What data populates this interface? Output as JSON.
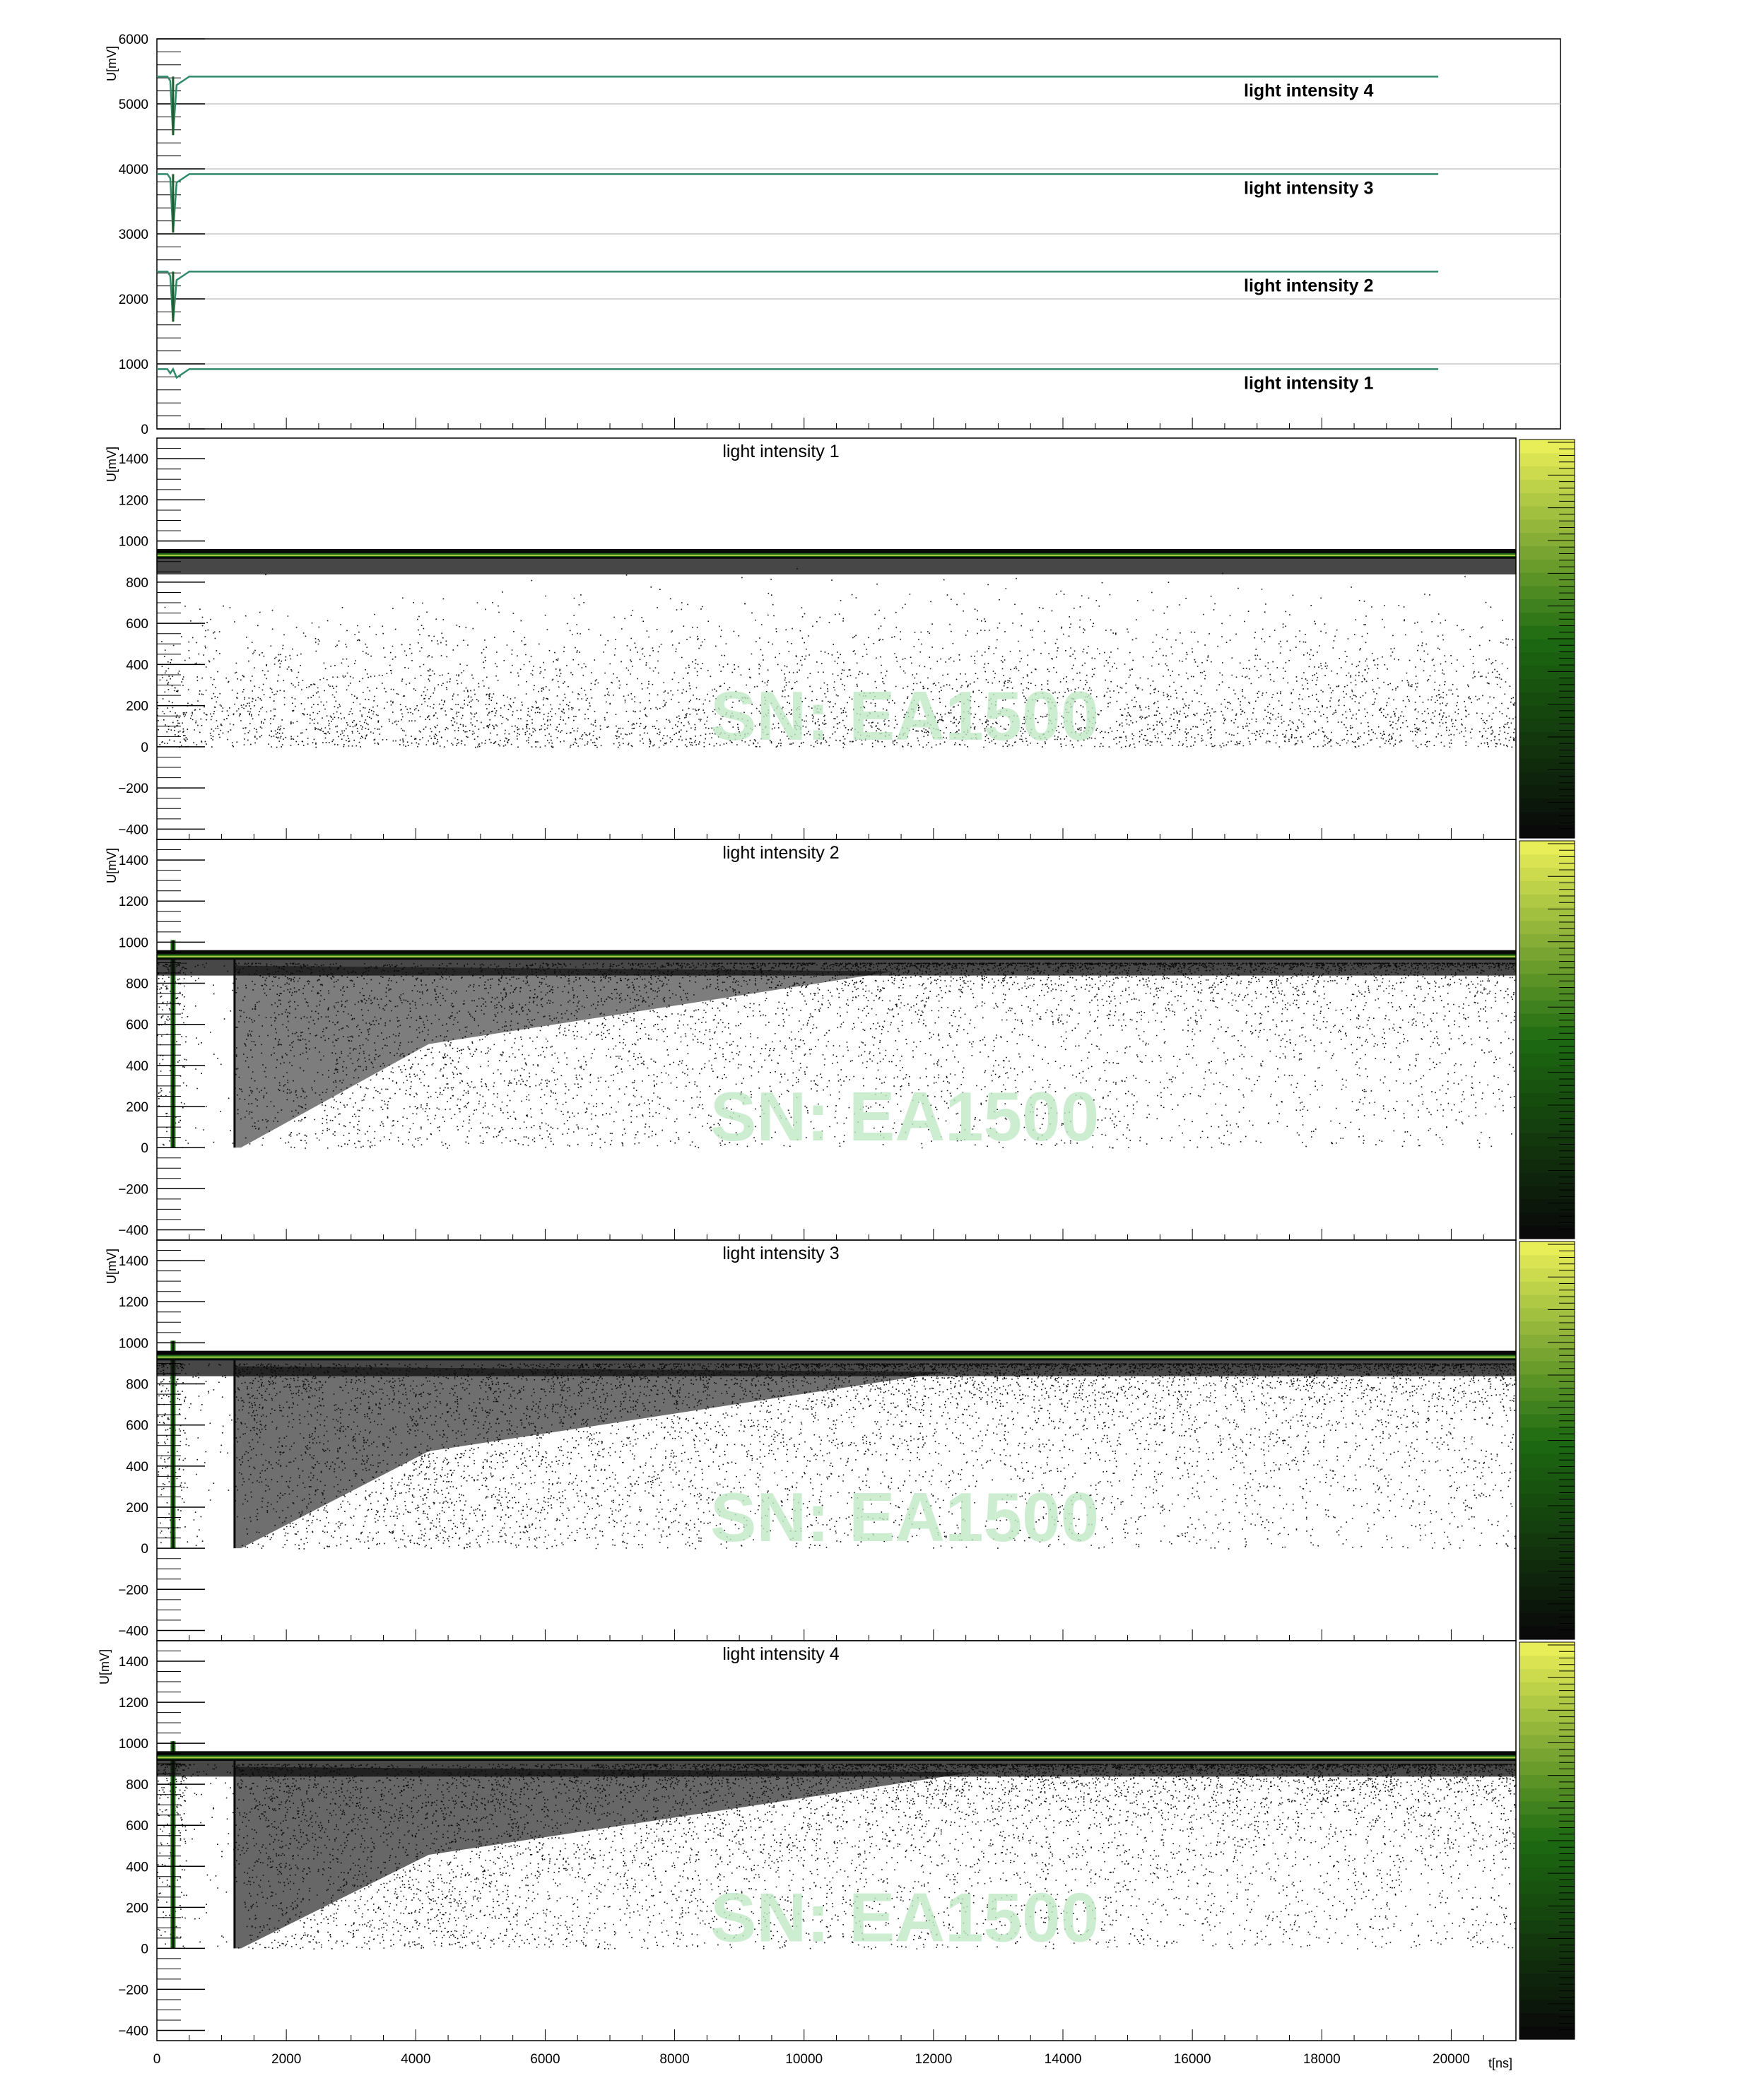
{
  "figure": {
    "watermark": "SN: EA1500",
    "colors": {
      "axis": "#000000",
      "grid": "#c8c8c8",
      "trace": "#2f8a6a",
      "trace_dark": "#1e5a2a",
      "density_low": "#0a0a0a",
      "density_mid": "#1d6b12",
      "density_high": "#e8ee58",
      "watermark": "#bfe9c4"
    }
  },
  "chart_data": [
    {
      "type": "line",
      "panel": "overview",
      "ylabel": "U[mV]",
      "ylim": [
        0,
        6000
      ],
      "xlim": [
        0,
        21000
      ],
      "yticks": [
        0,
        1000,
        2000,
        3000,
        4000,
        5000,
        6000
      ],
      "grid": true,
      "series": [
        {
          "name": "light intensity 1",
          "baseline": 920,
          "dip_min": 920,
          "x_end": 19800
        },
        {
          "name": "light intensity 2",
          "baseline": 2420,
          "dip_min": 1650,
          "x_end": 19800
        },
        {
          "name": "light intensity 3",
          "baseline": 3920,
          "dip_min": 3020,
          "x_end": 19800
        },
        {
          "name": "light intensity 4",
          "baseline": 5420,
          "dip_min": 4520,
          "x_end": 19800
        }
      ]
    },
    {
      "type": "heatmap",
      "title": "light intensity 1",
      "ylabel": "U[mV]",
      "xlim": [
        0,
        21000
      ],
      "ylim": [
        -450,
        1500
      ],
      "yticks": [
        -400,
        -200,
        0,
        200,
        400,
        600,
        800,
        1000,
        1200,
        1400
      ],
      "baseline": 920,
      "pulse": false,
      "density": 0.25
    },
    {
      "type": "heatmap",
      "title": "light intensity 2",
      "ylabel": "U[mV]",
      "xlim": [
        0,
        21000
      ],
      "ylim": [
        -450,
        1500
      ],
      "yticks": [
        -400,
        -200,
        0,
        200,
        400,
        600,
        800,
        1000,
        1200,
        1400
      ],
      "baseline": 920,
      "pulse": true,
      "density": 0.6
    },
    {
      "type": "heatmap",
      "title": "light intensity 3",
      "ylabel": "U[mV]",
      "xlim": [
        0,
        21000
      ],
      "ylim": [
        -450,
        1500
      ],
      "yticks": [
        -400,
        -200,
        0,
        200,
        400,
        600,
        800,
        1000,
        1200,
        1400
      ],
      "baseline": 920,
      "pulse": true,
      "density": 0.8
    },
    {
      "type": "heatmap",
      "title": "light intensity 4",
      "ylabel": "U[mV]",
      "xlabel": "t[ns]",
      "xlim": [
        0,
        21000
      ],
      "ylim": [
        -450,
        1500
      ],
      "xticks": [
        0,
        2000,
        4000,
        6000,
        8000,
        10000,
        12000,
        14000,
        16000,
        18000,
        20000
      ],
      "yticks": [
        -400,
        -200,
        0,
        200,
        400,
        600,
        800,
        1000,
        1200,
        1400
      ],
      "baseline": 920,
      "pulse": true,
      "density": 0.9
    }
  ]
}
